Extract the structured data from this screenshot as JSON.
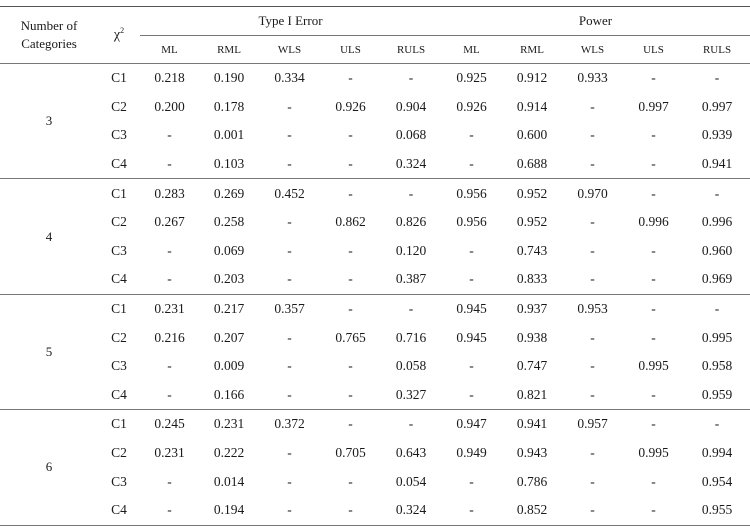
{
  "headers": {
    "number_of_categories": "Number of Categories",
    "chi": "χ",
    "chi_sup": "2",
    "type1": "Type I Error",
    "power": "Power",
    "methods": [
      "ML",
      "RML",
      "WLS",
      "ULS",
      "RULS",
      "ML",
      "RML",
      "WLS",
      "ULS",
      "RULS"
    ]
  },
  "groups": [
    {
      "label": "3",
      "rows": [
        {
          "c": "C1",
          "v": [
            "0.218",
            "0.190",
            "0.334",
            "-",
            "-",
            "0.925",
            "0.912",
            "0.933",
            "-",
            "-"
          ]
        },
        {
          "c": "C2",
          "v": [
            "0.200",
            "0.178",
            "-",
            "0.926",
            "0.904",
            "0.926",
            "0.914",
            "-",
            "0.997",
            "0.997"
          ]
        },
        {
          "c": "C3",
          "v": [
            "-",
            "0.001",
            "-",
            "-",
            "0.068",
            "-",
            "0.600",
            "-",
            "-",
            "0.939"
          ]
        },
        {
          "c": "C4",
          "v": [
            "-",
            "0.103",
            "-",
            "-",
            "0.324",
            "-",
            "0.688",
            "-",
            "-",
            "0.941"
          ]
        }
      ]
    },
    {
      "label": "4",
      "rows": [
        {
          "c": "C1",
          "v": [
            "0.283",
            "0.269",
            "0.452",
            "-",
            "-",
            "0.956",
            "0.952",
            "0.970",
            "-",
            "-"
          ]
        },
        {
          "c": "C2",
          "v": [
            "0.267",
            "0.258",
            "-",
            "0.862",
            "0.826",
            "0.956",
            "0.952",
            "-",
            "0.996",
            "0.996"
          ]
        },
        {
          "c": "C3",
          "v": [
            "-",
            "0.069",
            "-",
            "-",
            "0.120",
            "-",
            "0.743",
            "-",
            "-",
            "0.960"
          ]
        },
        {
          "c": "C4",
          "v": [
            "-",
            "0.203",
            "-",
            "-",
            "0.387",
            "-",
            "0.833",
            "-",
            "-",
            "0.969"
          ]
        }
      ]
    },
    {
      "label": "5",
      "rows": [
        {
          "c": "C1",
          "v": [
            "0.231",
            "0.217",
            "0.357",
            "-",
            "-",
            "0.945",
            "0.937",
            "0.953",
            "-",
            "-"
          ]
        },
        {
          "c": "C2",
          "v": [
            "0.216",
            "0.207",
            "-",
            "0.765",
            "0.716",
            "0.945",
            "0.938",
            "-",
            "-",
            "0.995"
          ]
        },
        {
          "c": "C3",
          "v": [
            "-",
            "0.009",
            "-",
            "-",
            "0.058",
            "-",
            "0.747",
            "-",
            "0.995",
            "0.958"
          ]
        },
        {
          "c": "C4",
          "v": [
            "-",
            "0.166",
            "-",
            "-",
            "0.327",
            "-",
            "0.821",
            "-",
            "-",
            "0.959"
          ]
        }
      ]
    },
    {
      "label": "6",
      "rows": [
        {
          "c": "C1",
          "v": [
            "0.245",
            "0.231",
            "0.372",
            "-",
            "-",
            "0.947",
            "0.941",
            "0.957",
            "-",
            "-"
          ]
        },
        {
          "c": "C2",
          "v": [
            "0.231",
            "0.222",
            "-",
            "0.705",
            "0.643",
            "0.949",
            "0.943",
            "-",
            "0.995",
            "0.994"
          ]
        },
        {
          "c": "C3",
          "v": [
            "-",
            "0.014",
            "-",
            "-",
            "0.054",
            "-",
            "0.786",
            "-",
            "-",
            "0.954"
          ]
        },
        {
          "c": "C4",
          "v": [
            "-",
            "0.194",
            "-",
            "-",
            "0.324",
            "-",
            "0.852",
            "-",
            "-",
            "0.955"
          ]
        }
      ]
    }
  ]
}
